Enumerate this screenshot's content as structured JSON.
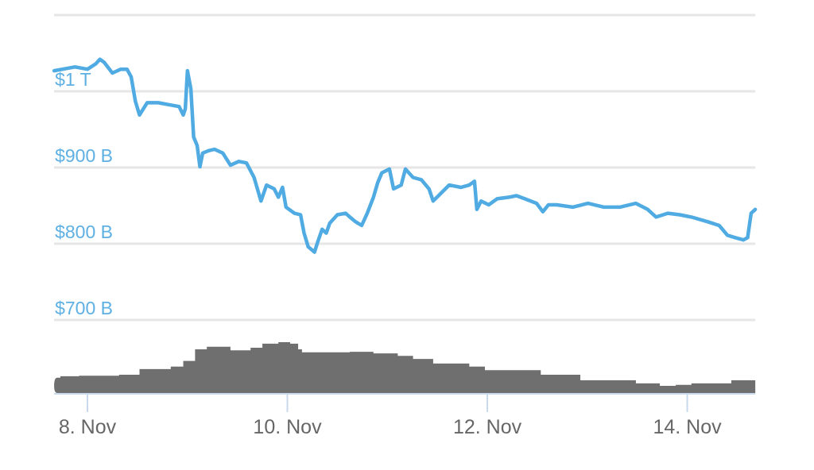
{
  "chart_data": {
    "type": "line",
    "title": "",
    "xlabel": "",
    "ylabel": "",
    "grid": true,
    "legend": "none",
    "colors": {
      "line": "#4fabe2",
      "volume": "#6f6f6f",
      "grid": "#e6e6e6",
      "ylabels": "#5eb0e3",
      "xlabels": "#666666",
      "axis": "#c9d9ec"
    },
    "ylim": [
      700,
      1100
    ],
    "y_ticks": [
      {
        "value": 1100,
        "label": ""
      },
      {
        "value": 1000,
        "label": "$1 T"
      },
      {
        "value": 900,
        "label": "$900 B"
      },
      {
        "value": 800,
        "label": "$800 B"
      },
      {
        "value": 700,
        "label": "$700 B"
      }
    ],
    "x_ticks": [
      {
        "value": "Nov 8 00:00",
        "label": "8. Nov"
      },
      {
        "value": "Nov 10 00:00",
        "label": "10. Nov"
      },
      {
        "value": "Nov 12 00:00",
        "label": "12. Nov"
      },
      {
        "value": "Nov 14 00:00",
        "label": "14. Nov"
      }
    ],
    "xlim": [
      "Nov 7 16:00",
      "Nov 14 16:20"
    ],
    "series": [
      {
        "unit": "B USD",
        "points": [
          [
            "Nov 7 16:00",
            1027
          ],
          [
            "Nov 7 18:00",
            1029
          ],
          [
            "Nov 7 21:00",
            1032
          ],
          [
            "Nov 8 00:00",
            1029
          ],
          [
            "Nov 8 02:00",
            1036
          ],
          [
            "Nov 8 03:00",
            1042
          ],
          [
            "Nov 8 04:00",
            1038
          ],
          [
            "Nov 8 06:00",
            1024
          ],
          [
            "Nov 8 08:00",
            1029
          ],
          [
            "Nov 8 09:30",
            1029
          ],
          [
            "Nov 8 10:30",
            1019
          ],
          [
            "Nov 8 11:30",
            987
          ],
          [
            "Nov 8 12:30",
            969
          ],
          [
            "Nov 8 14:20",
            985
          ],
          [
            "Nov 8 17:00",
            985
          ],
          [
            "Nov 8 20:00",
            982
          ],
          [
            "Nov 8 22:00",
            980
          ],
          [
            "Nov 8 23:00",
            969
          ],
          [
            "Nov 8 23:30",
            977
          ],
          [
            "Nov 9 00:00",
            1027
          ],
          [
            "Nov 9 00:50",
            1003
          ],
          [
            "Nov 9 01:30",
            940
          ],
          [
            "Nov 9 02:20",
            929
          ],
          [
            "Nov 9 03:00",
            901
          ],
          [
            "Nov 9 03:40",
            919
          ],
          [
            "Nov 9 05:00",
            922
          ],
          [
            "Nov 9 06:30",
            924
          ],
          [
            "Nov 9 08:30",
            919
          ],
          [
            "Nov 9 10:20",
            903
          ],
          [
            "Nov 9 12:20",
            908
          ],
          [
            "Nov 9 14:10",
            906
          ],
          [
            "Nov 9 16:00",
            887
          ],
          [
            "Nov 9 17:40",
            856
          ],
          [
            "Nov 9 19:00",
            877
          ],
          [
            "Nov 9 20:50",
            872
          ],
          [
            "Nov 9 21:50",
            861
          ],
          [
            "Nov 9 22:50",
            874
          ],
          [
            "Nov 9 23:40",
            848
          ],
          [
            "Nov 10 01:40",
            840
          ],
          [
            "Nov 10 03:10",
            838
          ],
          [
            "Nov 10 04:00",
            814
          ],
          [
            "Nov 10 05:00",
            796
          ],
          [
            "Nov 10 06:30",
            789
          ],
          [
            "Nov 10 07:20",
            803
          ],
          [
            "Nov 10 08:20",
            819
          ],
          [
            "Nov 10 09:20",
            814
          ],
          [
            "Nov 10 10:10",
            827
          ],
          [
            "Nov 10 12:00",
            838
          ],
          [
            "Nov 10 14:00",
            840
          ],
          [
            "Nov 10 15:00",
            835
          ],
          [
            "Nov 10 16:20",
            829
          ],
          [
            "Nov 10 17:50",
            824
          ],
          [
            "Nov 10 19:10",
            840
          ],
          [
            "Nov 10 20:40",
            861
          ],
          [
            "Nov 10 21:40",
            880
          ],
          [
            "Nov 10 22:40",
            893
          ],
          [
            "Nov 11 00:30",
            898
          ],
          [
            "Nov 11 01:30",
            872
          ],
          [
            "Nov 11 03:20",
            877
          ],
          [
            "Nov 11 04:20",
            898
          ],
          [
            "Nov 11 06:10",
            887
          ],
          [
            "Nov 11 08:10",
            884
          ],
          [
            "Nov 11 10:00",
            872
          ],
          [
            "Nov 11 11:00",
            856
          ],
          [
            "Nov 11 12:50",
            866
          ],
          [
            "Nov 11 14:50",
            877
          ],
          [
            "Nov 11 17:40",
            874
          ],
          [
            "Nov 11 19:40",
            877
          ],
          [
            "Nov 11 20:55",
            882
          ],
          [
            "Nov 11 21:30",
            845
          ],
          [
            "Nov 11 22:30",
            856
          ],
          [
            "Nov 12 00:20",
            851
          ],
          [
            "Nov 12 02:20",
            859
          ],
          [
            "Nov 12 05:10",
            861
          ],
          [
            "Nov 12 07:00",
            863
          ],
          [
            "Nov 12 09:00",
            859
          ],
          [
            "Nov 12 11:50",
            853
          ],
          [
            "Nov 12 13:20",
            842
          ],
          [
            "Nov 12 14:40",
            851
          ],
          [
            "Nov 12 16:40",
            851
          ],
          [
            "Nov 12 20:30",
            848
          ],
          [
            "Nov 13 00:10",
            853
          ],
          [
            "Nov 13 04:00",
            848
          ],
          [
            "Nov 13 07:50",
            848
          ],
          [
            "Nov 13 11:40",
            853
          ],
          [
            "Nov 13 14:30",
            845
          ],
          [
            "Nov 13 16:30",
            835
          ],
          [
            "Nov 13 19:20",
            840
          ],
          [
            "Nov 13 22:10",
            838
          ],
          [
            "Nov 14 01:00",
            835
          ],
          [
            "Nov 14 04:50",
            829
          ],
          [
            "Nov 14 07:40",
            824
          ],
          [
            "Nov 14 09:40",
            811
          ],
          [
            "Nov 14 11:30",
            808
          ],
          [
            "Nov 14 13:30",
            805
          ],
          [
            "Nov 14 14:30",
            808
          ],
          [
            "Nov 14 15:20",
            840
          ],
          [
            "Nov 14 16:20",
            845
          ]
        ]
      },
      {
        "type": "step-area",
        "unit": "relative volume (% of max)",
        "points": [
          [
            "Nov 7 16:00",
            30
          ],
          [
            "Nov 7 17:30",
            33
          ],
          [
            "Nov 7 22:00",
            34
          ],
          [
            "Nov 8 07:35",
            36
          ],
          [
            "Nov 8 12:30",
            47
          ],
          [
            "Nov 8 20:00",
            52
          ],
          [
            "Nov 8 23:00",
            63
          ],
          [
            "Nov 9 01:50",
            86
          ],
          [
            "Nov 9 04:40",
            91
          ],
          [
            "Nov 9 10:20",
            84
          ],
          [
            "Nov 9 15:10",
            89
          ],
          [
            "Nov 9 18:00",
            97
          ],
          [
            "Nov 9 21:50",
            100
          ],
          [
            "Nov 10 00:40",
            97
          ],
          [
            "Nov 10 02:35",
            86
          ],
          [
            "Nov 10 03:30",
            80
          ],
          [
            "Nov 10 15:00",
            81
          ],
          [
            "Nov 10 20:40",
            78
          ],
          [
            "Nov 11 02:30",
            73
          ],
          [
            "Nov 11 06:10",
            67
          ],
          [
            "Nov 11 11:00",
            58
          ],
          [
            "Nov 11 19:40",
            52
          ],
          [
            "Nov 11 23:25",
            45
          ],
          [
            "Nov 12 12:50",
            36
          ],
          [
            "Nov 12 22:20",
            25
          ],
          [
            "Nov 13 11:40",
            19
          ],
          [
            "Nov 13 17:25",
            14
          ],
          [
            "Nov 13 21:15",
            16
          ],
          [
            "Nov 14 01:00",
            19
          ],
          [
            "Nov 14 10:35",
            25
          ]
        ]
      }
    ]
  }
}
